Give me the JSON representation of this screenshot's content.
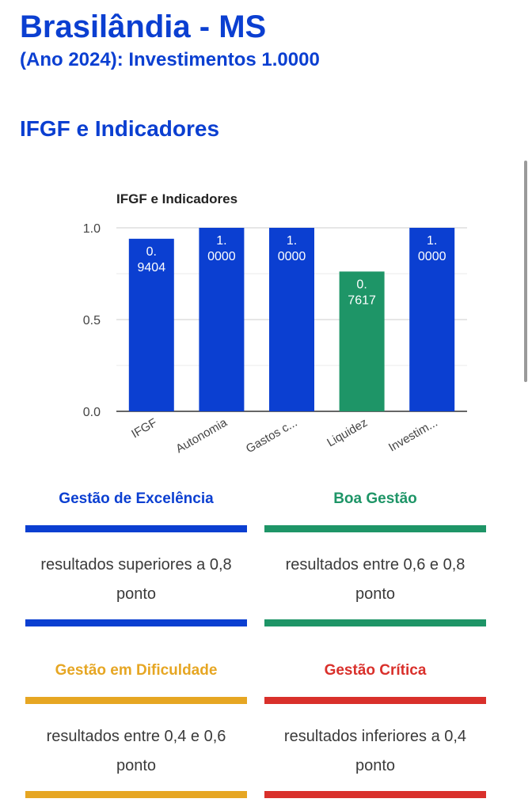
{
  "header": {
    "title": "Brasilândia - MS",
    "subtitle": "(Ano 2024): Investimentos 1.0000"
  },
  "section": {
    "title": "IFGF e Indicadores"
  },
  "chart_data": {
    "type": "bar",
    "title": "IFGF e Indicadores",
    "categories": [
      "IFGF",
      "Autonomia",
      "Gastos c...",
      "Liquidez",
      "Investim..."
    ],
    "values": [
      0.9404,
      1.0,
      1.0,
      0.7617,
      1.0
    ],
    "data_labels": [
      [
        "0.",
        "9404"
      ],
      [
        "1.",
        "0000"
      ],
      [
        "1.",
        "0000"
      ],
      [
        "0.",
        "7617"
      ],
      [
        "1.",
        "0000"
      ]
    ],
    "bar_colors": [
      "#0b3fd1",
      "#0b3fd1",
      "#0b3fd1",
      "#1e9567",
      "#0b3fd1"
    ],
    "yticks": [
      "0.0",
      "0.5",
      "1.0"
    ],
    "ylim": [
      0,
      1
    ],
    "grid": true,
    "xlabel": "",
    "ylabel": ""
  },
  "legend": {
    "cards": [
      {
        "title": "Gestão de Excelência",
        "text": "resultados superiores a 0,8 ponto",
        "color": "#0b3fd1"
      },
      {
        "title": "Boa Gestão",
        "text": "resultados entre 0,6 e 0,8 ponto",
        "color": "#1e9567"
      },
      {
        "title": "Gestão em Dificuldade",
        "text": "resultados entre 0,4 e 0,6 ponto",
        "color": "#e6a623"
      },
      {
        "title": "Gestão Crítica",
        "text": "resultados inferiores a 0,4 ponto",
        "color": "#d9302b"
      }
    ]
  }
}
